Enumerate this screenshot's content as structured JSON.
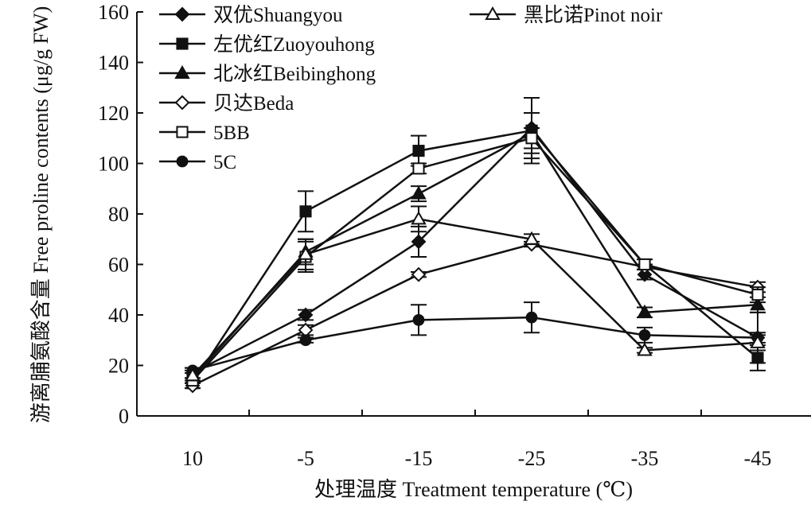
{
  "chart_data": {
    "type": "line",
    "title": "",
    "xlabel": "处理温度 Treatment temperature (℃)",
    "ylabel": "游离脯氨酸含量 Free proline contents (μg/g FW)",
    "categories": [
      "10",
      "-5",
      "-15",
      "-25",
      "-35",
      "-45"
    ],
    "ylim": [
      0,
      160
    ],
    "yticks": [
      0,
      20,
      40,
      60,
      80,
      100,
      120,
      140,
      160
    ],
    "grid": false,
    "legend_position": "top",
    "series": [
      {
        "name": "双优Shuangyou",
        "marker": "filled-diamond",
        "values": [
          17,
          40,
          69,
          114,
          56,
          31
        ],
        "errors": [
          2,
          2,
          6,
          12,
          2,
          10
        ]
      },
      {
        "name": "左优红Zuoyouhong",
        "marker": "filled-square",
        "values": [
          13,
          81,
          105,
          113,
          60,
          23
        ],
        "errors": [
          2,
          8,
          6,
          13,
          2,
          5
        ]
      },
      {
        "name": "北冰红Beibinghong",
        "marker": "filled-triangle",
        "values": [
          15,
          65,
          88,
          112,
          41,
          44
        ],
        "errors": [
          2,
          5,
          3,
          8,
          2,
          3
        ]
      },
      {
        "name": "贝达Beda",
        "marker": "open-diamond",
        "values": [
          12,
          34,
          56,
          68,
          59,
          51
        ],
        "errors": [
          1,
          2,
          1,
          1,
          1,
          2
        ]
      },
      {
        "name": "5BB",
        "marker": "open-square",
        "values": [
          14,
          63,
          98,
          110,
          60,
          48
        ],
        "errors": [
          1,
          6,
          2,
          4,
          2,
          3
        ]
      },
      {
        "name": "5C",
        "marker": "filled-circle",
        "values": [
          18,
          30,
          38,
          39,
          32,
          31
        ],
        "errors": [
          1,
          1,
          6,
          6,
          3,
          2
        ]
      },
      {
        "name": "黑比诺Pinot noir",
        "marker": "open-triangle",
        "values": [
          16,
          64,
          78,
          70,
          26,
          29
        ],
        "errors": [
          2,
          6,
          5,
          2,
          1,
          3
        ]
      }
    ]
  }
}
